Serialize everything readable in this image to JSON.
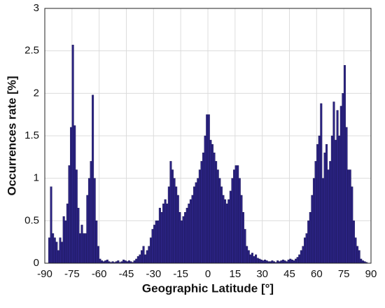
{
  "chart_data": {
    "type": "histogram",
    "x_label": "Geographic Latitude [°]",
    "y_label": "Occurrences rate [%]",
    "color": "#2b2383",
    "edge_color": "#14104a",
    "grid": true,
    "xlim": [
      -90,
      90
    ],
    "ylim": [
      0,
      3
    ],
    "xticks": [
      -90,
      -75,
      -60,
      -45,
      -30,
      -15,
      0,
      15,
      30,
      45,
      60,
      75,
      90
    ],
    "yticks": [
      0,
      0.5,
      1,
      1.5,
      2,
      2.5,
      3
    ],
    "bins": [
      -90,
      -89,
      -88,
      -87,
      -86,
      -85,
      -84,
      -83,
      -82,
      -81,
      -80,
      -79,
      -78,
      -77,
      -76,
      -75,
      -74,
      -73,
      -72,
      -71,
      -70,
      -69,
      -68,
      -67,
      -66,
      -65,
      -64,
      -63,
      -62,
      -61,
      -60,
      -59,
      -58,
      -57,
      -56,
      -55,
      -54,
      -53,
      -52,
      -51,
      -50,
      -49,
      -48,
      -47,
      -46,
      -45,
      -44,
      -43,
      -42,
      -41,
      -40,
      -39,
      -38,
      -37,
      -36,
      -35,
      -34,
      -33,
      -32,
      -31,
      -30,
      -29,
      -28,
      -27,
      -26,
      -25,
      -24,
      -23,
      -22,
      -21,
      -20,
      -19,
      -18,
      -17,
      -16,
      -15,
      -14,
      -13,
      -12,
      -11,
      -10,
      -9,
      -8,
      -7,
      -6,
      -5,
      -4,
      -3,
      -2,
      -1,
      0,
      1,
      2,
      3,
      4,
      5,
      6,
      7,
      8,
      9,
      10,
      11,
      12,
      13,
      14,
      15,
      16,
      17,
      18,
      19,
      20,
      21,
      22,
      23,
      24,
      25,
      26,
      27,
      28,
      29,
      30,
      31,
      32,
      33,
      34,
      35,
      36,
      37,
      38,
      39,
      40,
      41,
      42,
      43,
      44,
      45,
      46,
      47,
      48,
      49,
      50,
      51,
      52,
      53,
      54,
      55,
      56,
      57,
      58,
      59,
      60,
      61,
      62,
      63,
      64,
      65,
      66,
      67,
      68,
      69,
      70,
      71,
      72,
      73,
      74,
      75,
      76,
      77,
      78,
      79,
      80,
      81,
      82,
      83,
      84,
      85,
      86,
      87,
      88,
      89,
      90
    ],
    "counts": [
      0,
      0,
      0.3,
      0.9,
      0.35,
      0.3,
      0.25,
      0.15,
      0.3,
      0.25,
      0.55,
      0.5,
      0.7,
      1.15,
      1.6,
      2.57,
      1.62,
      1.1,
      0.65,
      0.35,
      0.45,
      0.35,
      0.35,
      0.8,
      1.0,
      1.2,
      1.98,
      1.0,
      0.5,
      0.2,
      0.05,
      0.03,
      0.02,
      0.03,
      0.04,
      0.02,
      0.01,
      0.02,
      0.01,
      0.02,
      0.03,
      0.01,
      0.02,
      0.04,
      0.03,
      0.02,
      0.03,
      0.02,
      0.01,
      0.03,
      0.05,
      0.08,
      0.1,
      0.15,
      0.2,
      0.1,
      0.15,
      0.2,
      0.3,
      0.4,
      0.45,
      0.5,
      0.5,
      0.65,
      0.6,
      0.7,
      0.75,
      0.7,
      0.9,
      1.2,
      1.1,
      1.0,
      0.9,
      0.8,
      0.6,
      0.5,
      0.55,
      0.6,
      0.65,
      0.7,
      0.75,
      0.8,
      0.9,
      0.95,
      1.0,
      1.1,
      1.2,
      1.3,
      1.5,
      1.75,
      1.75,
      1.45,
      1.4,
      1.3,
      1.2,
      1.1,
      1.0,
      0.9,
      0.8,
      0.75,
      0.7,
      0.75,
      0.85,
      1.0,
      1.1,
      1.15,
      1.15,
      1.0,
      0.8,
      0.6,
      0.4,
      0.2,
      0.15,
      0.1,
      0.12,
      0.08,
      0.1,
      0.06,
      0.05,
      0.04,
      0.03,
      0.04,
      0.03,
      0.02,
      0.02,
      0.03,
      0.02,
      0.01,
      0.03,
      0.02,
      0.03,
      0.04,
      0.03,
      0.02,
      0.04,
      0.05,
      0.04,
      0.03,
      0.05,
      0.07,
      0.1,
      0.15,
      0.2,
      0.3,
      0.35,
      0.5,
      0.6,
      0.8,
      1.0,
      1.2,
      1.4,
      1.5,
      1.88,
      1.0,
      1.3,
      1.4,
      1.1,
      1.2,
      1.5,
      1.9,
      1.45,
      1.8,
      1.5,
      1.85,
      2.0,
      2.33,
      1.6,
      1.1,
      1.1,
      0.9,
      0.5,
      0.3,
      0.2,
      0.15,
      0.05,
      0.03,
      0.02,
      0.01,
      0,
      0
    ]
  }
}
